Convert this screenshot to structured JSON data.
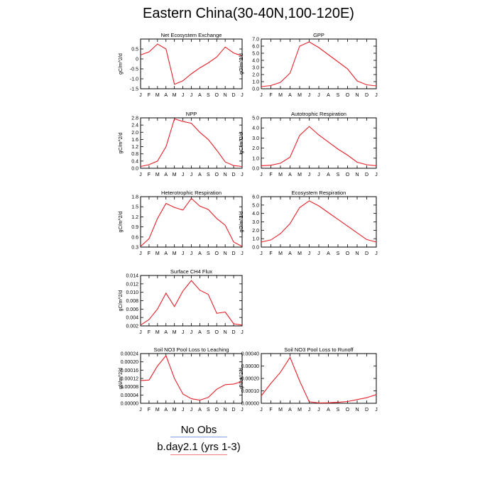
{
  "page_title": "Eastern China(30-40N,100-120E)",
  "line_color": "#e8202a",
  "legend": {
    "items": [
      {
        "label": "No Obs",
        "color": "#7f9fe0"
      },
      {
        "label": "b.day2.1 (yrs 1-3)",
        "color": "#f08080"
      }
    ]
  },
  "chart_data": [
    {
      "type": "line",
      "title": "Net Ecosystem Exchange",
      "ylabel": "gC/m^2/d",
      "x": [
        "J",
        "F",
        "M",
        "A",
        "M",
        "J",
        "J",
        "A",
        "S",
        "O",
        "N",
        "D",
        "J"
      ],
      "ylim": [
        -1.5,
        1.0
      ],
      "yticks": [
        0.5,
        0.0,
        -0.5,
        -1.0,
        -1.5
      ],
      "yticklabels": [
        "0.5",
        "0",
        "-0.5",
        "-1.0",
        "-1.5"
      ],
      "series": [
        {
          "values": [
            0.2,
            0.35,
            0.75,
            0.5,
            -1.28,
            -1.1,
            -0.75,
            -0.45,
            -0.2,
            0.1,
            0.6,
            0.3,
            0.15
          ]
        }
      ]
    },
    {
      "type": "line",
      "title": "GPP",
      "ylabel": "gC/m^2/d",
      "x": [
        "J",
        "F",
        "M",
        "A",
        "M",
        "J",
        "J",
        "A",
        "S",
        "O",
        "N",
        "D",
        "J"
      ],
      "ylim": [
        0.0,
        7.0
      ],
      "yticks": [
        7.0,
        6.0,
        5.0,
        4.0,
        3.0,
        2.0,
        1.0,
        0.0
      ],
      "yticklabels": [
        "7.0",
        "6.0",
        "5.0",
        "4.0",
        "3.0",
        "2.0",
        "1.0",
        "0.0"
      ],
      "series": [
        {
          "values": [
            0.3,
            0.45,
            0.9,
            2.2,
            6.0,
            6.6,
            5.8,
            4.8,
            3.8,
            2.8,
            1.1,
            0.55,
            0.4
          ]
        }
      ]
    },
    {
      "type": "line",
      "title": "NPP",
      "ylabel": "gC/m^2/d",
      "x": [
        "J",
        "F",
        "M",
        "A",
        "M",
        "J",
        "J",
        "A",
        "S",
        "O",
        "N",
        "D",
        "J"
      ],
      "ylim": [
        0.0,
        2.8
      ],
      "yticks": [
        2.8,
        2.4,
        2.0,
        1.6,
        1.2,
        0.8,
        0.4,
        0.0
      ],
      "yticklabels": [
        "2.8",
        "2.4",
        "2.0",
        "1.6",
        "1.2",
        "0.8",
        "0.4",
        "0.0"
      ],
      "series": [
        {
          "values": [
            0.1,
            0.2,
            0.4,
            1.2,
            2.75,
            2.6,
            2.5,
            2.0,
            1.6,
            1.0,
            0.35,
            0.15,
            0.1
          ]
        }
      ]
    },
    {
      "type": "line",
      "title": "Autotrophic Respiration",
      "ylabel": "gC/m^2/d",
      "x": [
        "J",
        "F",
        "M",
        "A",
        "M",
        "J",
        "J",
        "A",
        "S",
        "O",
        "N",
        "D",
        "J"
      ],
      "ylim": [
        0.0,
        5.0
      ],
      "yticks": [
        5.0,
        4.0,
        3.0,
        2.0,
        1.0,
        0.0
      ],
      "yticklabels": [
        "5.0",
        "4.0",
        "3.0",
        "2.0",
        "1.0",
        "0.0"
      ],
      "series": [
        {
          "values": [
            0.25,
            0.3,
            0.5,
            1.1,
            3.25,
            4.15,
            3.3,
            2.6,
            1.9,
            1.3,
            0.6,
            0.35,
            0.25
          ]
        }
      ]
    },
    {
      "type": "line",
      "title": "Heterotrophic Respiration",
      "ylabel": "gC/m^2/d",
      "x": [
        "J",
        "F",
        "M",
        "A",
        "M",
        "J",
        "J",
        "A",
        "S",
        "O",
        "N",
        "D",
        "J"
      ],
      "ylim": [
        0.3,
        1.8
      ],
      "yticks": [
        1.8,
        1.5,
        1.2,
        0.9,
        0.6,
        0.3
      ],
      "yticklabels": [
        "1.8",
        "1.5",
        "1.2",
        "0.9",
        "0.6",
        "0.3"
      ],
      "series": [
        {
          "values": [
            0.32,
            0.55,
            1.15,
            1.6,
            1.48,
            1.4,
            1.75,
            1.52,
            1.42,
            1.15,
            0.95,
            0.45,
            0.32
          ]
        }
      ]
    },
    {
      "type": "line",
      "title": "Ecosystem Respiration",
      "ylabel": "gC/m^2/d",
      "x": [
        "J",
        "F",
        "M",
        "A",
        "M",
        "J",
        "J",
        "A",
        "S",
        "O",
        "N",
        "D",
        "J"
      ],
      "ylim": [
        0.0,
        6.0
      ],
      "yticks": [
        6.0,
        5.0,
        4.0,
        3.0,
        2.0,
        1.0,
        0.0
      ],
      "yticklabels": [
        "6.0",
        "5.0",
        "4.0",
        "3.0",
        "2.0",
        "1.0",
        "0.0"
      ],
      "series": [
        {
          "values": [
            0.6,
            0.85,
            1.6,
            2.8,
            4.7,
            5.5,
            4.9,
            4.1,
            3.3,
            2.5,
            1.7,
            0.9,
            0.6
          ]
        }
      ]
    },
    {
      "type": "line",
      "title": "Surface CH4 Flux",
      "ylabel": "gC/m^2/d",
      "x": [
        "J",
        "F",
        "M",
        "A",
        "M",
        "J",
        "J",
        "A",
        "S",
        "O",
        "N",
        "D",
        "J"
      ],
      "ylim": [
        0.002,
        0.014
      ],
      "yticks": [
        0.014,
        0.012,
        0.01,
        0.008,
        0.006,
        0.004,
        0.002
      ],
      "yticklabels": [
        "0.014",
        "0.012",
        "0.010",
        "0.008",
        "0.006",
        "0.004",
        "0.002"
      ],
      "series": [
        {
          "values": [
            0.0022,
            0.0035,
            0.006,
            0.0098,
            0.0066,
            0.0103,
            0.0128,
            0.0105,
            0.0095,
            0.005,
            0.0053,
            0.0025,
            0.0022
          ]
        }
      ]
    },
    {
      "type": "line",
      "title": "Soil NO3 Pool Loss to Leaching",
      "ylabel": "gN/m^2/d",
      "x": [
        "J",
        "F",
        "M",
        "A",
        "M",
        "J",
        "J",
        "A",
        "S",
        "O",
        "N",
        "D",
        "J"
      ],
      "ylim": [
        0.0,
        0.00024
      ],
      "yticks": [
        0.00024,
        0.0002,
        0.00016,
        0.00012,
        8e-05,
        4e-05,
        0.0
      ],
      "yticklabels": [
        "0.00024",
        "0.00020",
        "0.00016",
        "0.00012",
        "0.00008",
        "0.00004",
        "0.00000"
      ],
      "series": [
        {
          "values": [
            0.00011,
            0.000112,
            0.00018,
            0.00023,
            0.00012,
            4.5e-05,
            2.2e-05,
            1.5e-05,
            2.8e-05,
            6.8e-05,
            9e-05,
            9.3e-05,
            0.000105
          ]
        }
      ]
    },
    {
      "type": "line",
      "title": "Soil NO3 Pool Loss to Runoff",
      "ylabel": "gN/m^2/d",
      "x": [
        "J",
        "F",
        "M",
        "A",
        "M",
        "J",
        "J",
        "A",
        "S",
        "O",
        "N",
        "D",
        "J"
      ],
      "ylim": [
        0.0,
        0.0004
      ],
      "yticks": [
        0.0004,
        0.0003,
        0.0002,
        0.0001,
        0.0
      ],
      "yticklabels": [
        "0.00040",
        "0.00030",
        "0.00020",
        "0.00010",
        "0.00000"
      ],
      "series": [
        {
          "values": [
            6e-05,
            0.00016,
            0.00025,
            0.00037,
            0.00018,
            1.2e-05,
            3e-06,
            4e-06,
            8e-06,
            1.4e-05,
            3e-05,
            4.5e-05,
            7e-05
          ]
        }
      ]
    }
  ]
}
